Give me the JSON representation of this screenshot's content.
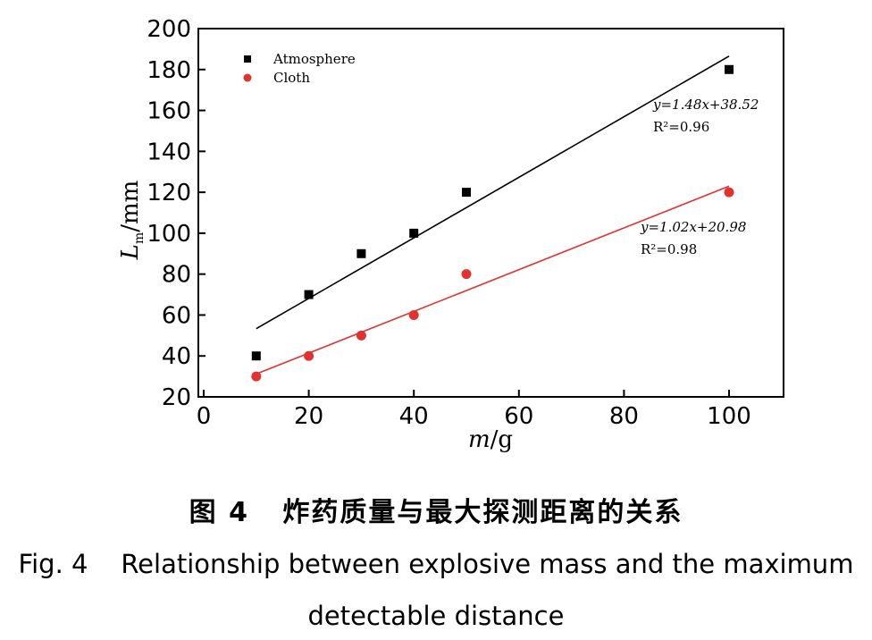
{
  "chart_data": {
    "type": "scatter",
    "xlabel": {
      "var": "m",
      "unit": "/g"
    },
    "ylabel": {
      "var": "L",
      "sub": "m",
      "unit": "/mm"
    },
    "xlim": [
      0,
      110
    ],
    "ylim": [
      20,
      200
    ],
    "xticks": [
      0,
      20,
      40,
      60,
      80,
      100
    ],
    "yticks": [
      20,
      40,
      60,
      80,
      100,
      120,
      140,
      160,
      180,
      200
    ],
    "grid": false,
    "legend_placement": "top-left",
    "series": [
      {
        "name": "Atmosphere",
        "marker": "square",
        "color": "#000000",
        "x": [
          10,
          20,
          30,
          40,
          50,
          100
        ],
        "y": [
          40,
          70,
          90,
          100,
          120,
          180
        ],
        "fit": {
          "slope": 1.48,
          "intercept": 38.52,
          "x_range": [
            10,
            100
          ]
        },
        "annotation": {
          "equation": "y=1.48x+38.52",
          "r2": "R²=0.96"
        }
      },
      {
        "name": "Cloth",
        "marker": "circle",
        "color": "#e0332f",
        "x": [
          10,
          20,
          30,
          40,
          50,
          100
        ],
        "y": [
          30,
          40,
          50,
          60,
          80,
          120
        ],
        "fit": {
          "slope": 1.02,
          "intercept": 20.98,
          "x_range": [
            10,
            100
          ]
        },
        "annotation": {
          "equation": "y=1.02x+20.98",
          "r2": "R²=0.98"
        }
      }
    ]
  },
  "caption": {
    "cn": "图 4   炸药质量与最大探测距离的关系",
    "en_line1": "Fig. 4    Relationship between explosive mass and the maximum",
    "en_line2": "detectable distance"
  }
}
